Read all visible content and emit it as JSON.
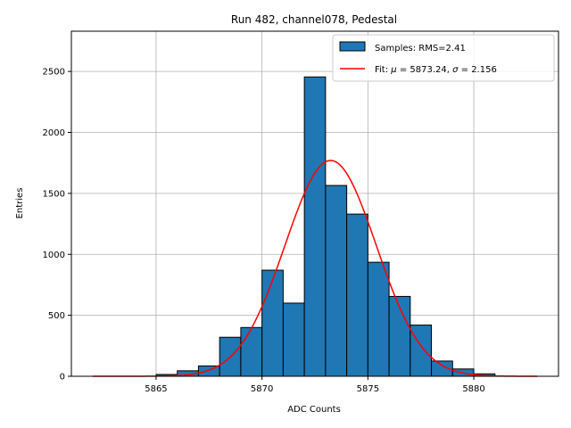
{
  "chart_data": {
    "type": "bar",
    "title": "Run 482, channel078, Pedestal",
    "xlabel": "ADC Counts",
    "ylabel": "Entries",
    "xlim": [
      5861.0,
      5884.0
    ],
    "ylim": [
      0,
      2830
    ],
    "xticks": [
      5865,
      5870,
      5875,
      5880
    ],
    "yticks": [
      0,
      500,
      1000,
      1500,
      2000,
      2500
    ],
    "grid": true,
    "legend_position": "top-right",
    "bin_width": 1,
    "bars": [
      {
        "x0": 5865,
        "value": 15
      },
      {
        "x0": 5866,
        "value": 45
      },
      {
        "x0": 5867,
        "value": 85
      },
      {
        "x0": 5868,
        "value": 320
      },
      {
        "x0": 5869,
        "value": 400
      },
      {
        "x0": 5870,
        "value": 870
      },
      {
        "x0": 5871,
        "value": 600
      },
      {
        "x0": 5872,
        "value": 2455
      },
      {
        "x0": 5873,
        "value": 1565
      },
      {
        "x0": 5874,
        "value": 1330
      },
      {
        "x0": 5875,
        "value": 935
      },
      {
        "x0": 5876,
        "value": 655
      },
      {
        "x0": 5877,
        "value": 420
      },
      {
        "x0": 5878,
        "value": 125
      },
      {
        "x0": 5879,
        "value": 60
      },
      {
        "x0": 5880,
        "value": 20
      }
    ],
    "fit": {
      "mu": 5873.24,
      "sigma": 2.156,
      "amplitude": 1770,
      "x_range": [
        5862,
        5883
      ]
    },
    "legend": [
      {
        "label": "Samples: RMS=2.41",
        "kind": "bar",
        "color": "#1f77b4"
      },
      {
        "label_prefix": "Fit: ",
        "mu_symbol": "μ",
        "mu_text": " = 5873.24, ",
        "sigma_symbol": "σ",
        "sigma_text": " = 2.156",
        "kind": "line",
        "color": "#ff0000"
      }
    ]
  }
}
